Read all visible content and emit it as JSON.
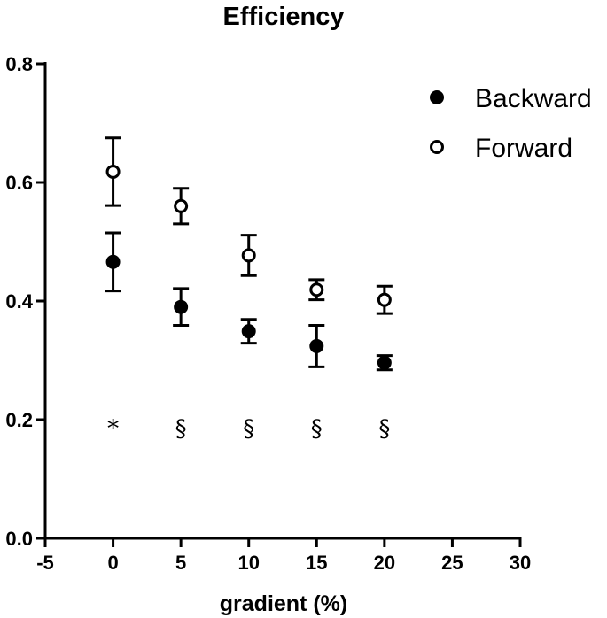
{
  "chart_data": {
    "type": "scatter",
    "title": "Efficiency",
    "xlabel": "gradient (%)",
    "ylabel": "",
    "xlim": [
      -5,
      30
    ],
    "ylim": [
      0,
      0.8
    ],
    "x_ticks": [
      -5,
      0,
      5,
      10,
      15,
      20,
      25,
      30
    ],
    "y_ticks": [
      0.0,
      0.2,
      0.4,
      0.6,
      0.8
    ],
    "grid": false,
    "legend": "top-right",
    "series": [
      {
        "name": "Backward",
        "marker": "filled-circle",
        "x": [
          0,
          5,
          10,
          15,
          20
        ],
        "y": [
          0.466,
          0.39,
          0.349,
          0.324,
          0.296
        ],
        "err": [
          0.049,
          0.031,
          0.02,
          0.035,
          0.012
        ]
      },
      {
        "name": "Forward",
        "marker": "open-circle",
        "x": [
          0,
          5,
          10,
          15,
          20
        ],
        "y": [
          0.618,
          0.56,
          0.477,
          0.419,
          0.402
        ],
        "err": [
          0.057,
          0.03,
          0.034,
          0.017,
          0.023
        ]
      }
    ],
    "annotations": [
      {
        "x": 0,
        "y": 0.19,
        "text": "*"
      },
      {
        "x": 5,
        "y": 0.19,
        "text": "§"
      },
      {
        "x": 10,
        "y": 0.19,
        "text": "§"
      },
      {
        "x": 15,
        "y": 0.19,
        "text": "§"
      },
      {
        "x": 20,
        "y": 0.19,
        "text": "§"
      }
    ]
  }
}
